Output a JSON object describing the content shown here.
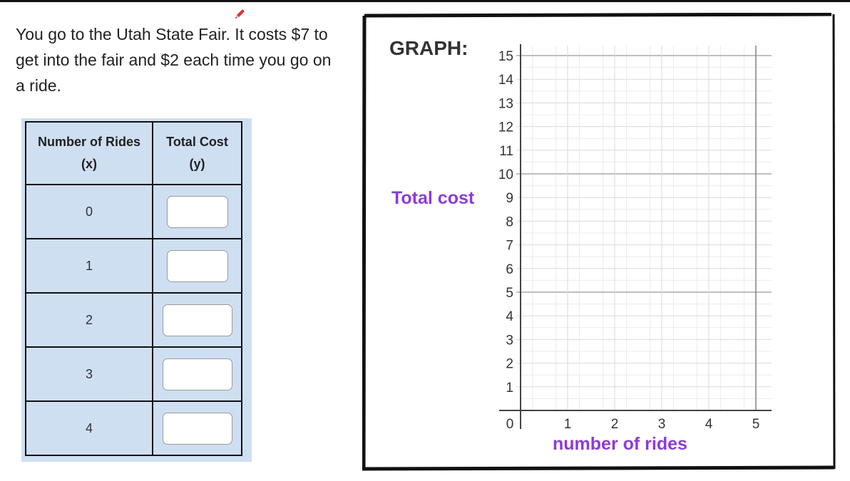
{
  "problem_text": "You go to the Utah State Fair. It costs $7 to get into the fair and $2 each time you go on a ride.",
  "table": {
    "col1_header_line1": "Number of Rides",
    "col1_header_line2": "(x)",
    "col2_header_line1": "Total Cost",
    "col2_header_line2": "(y)",
    "rows": [
      {
        "x": "0",
        "y": ""
      },
      {
        "x": "1",
        "y": ""
      },
      {
        "x": "2",
        "y": ""
      },
      {
        "x": "3",
        "y": ""
      },
      {
        "x": "4",
        "y": ""
      }
    ]
  },
  "graph": {
    "heading": "GRAPH:",
    "ylabel": "Total cost",
    "xlabel": "number of rides"
  },
  "chart_data": {
    "type": "scatter",
    "title": "GRAPH:",
    "xlabel": "number of rides",
    "ylabel": "Total cost",
    "xlim": [
      0,
      5
    ],
    "ylim": [
      0,
      15
    ],
    "x_ticks": [
      "0",
      "1",
      "2",
      "3",
      "4",
      "5"
    ],
    "y_ticks": [
      "1",
      "2",
      "3",
      "4",
      "5",
      "6",
      "7",
      "8",
      "9",
      "10",
      "11",
      "12",
      "13",
      "14",
      "15"
    ],
    "grid": true,
    "series": []
  },
  "colors": {
    "label_purple": "#8e3ad9",
    "table_fill": "#cfdff2"
  }
}
